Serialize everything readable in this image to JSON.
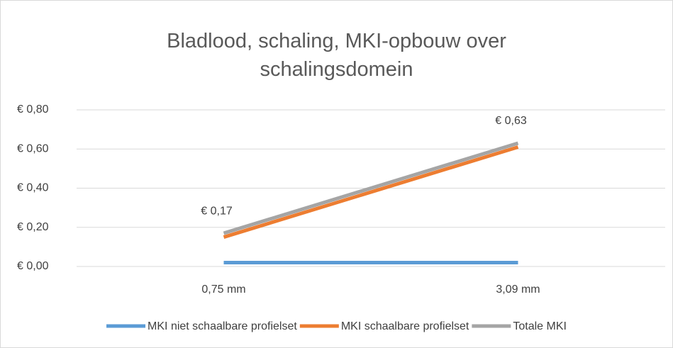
{
  "chart_data": {
    "type": "line",
    "title": "Bladlood, schaling, MKI-opbouw over schalingsdomein",
    "categories": [
      "0,75 mm",
      "3,09 mm"
    ],
    "series": [
      {
        "name": "MKI niet schaalbare profielset",
        "color": "#5b9bd5",
        "values": [
          0.02,
          0.02
        ]
      },
      {
        "name": "MKI schaalbare profielset",
        "color": "#ed7d31",
        "values": [
          0.15,
          0.61
        ]
      },
      {
        "name": "Totale MKI",
        "color": "#a5a5a5",
        "values": [
          0.17,
          0.63
        ],
        "value_labels": [
          "€ 0,17",
          "€ 0,63"
        ]
      }
    ],
    "ylim": [
      0,
      0.8
    ],
    "yticks": [
      {
        "value": 0,
        "label": "€ 0,00"
      },
      {
        "value": 0.2,
        "label": "€ 0,20"
      },
      {
        "value": 0.4,
        "label": "€ 0,40"
      },
      {
        "value": 0.6,
        "label": "€ 0,60"
      },
      {
        "value": 0.8,
        "label": "€ 0,80"
      }
    ],
    "grid": true,
    "legend": "bottom"
  }
}
